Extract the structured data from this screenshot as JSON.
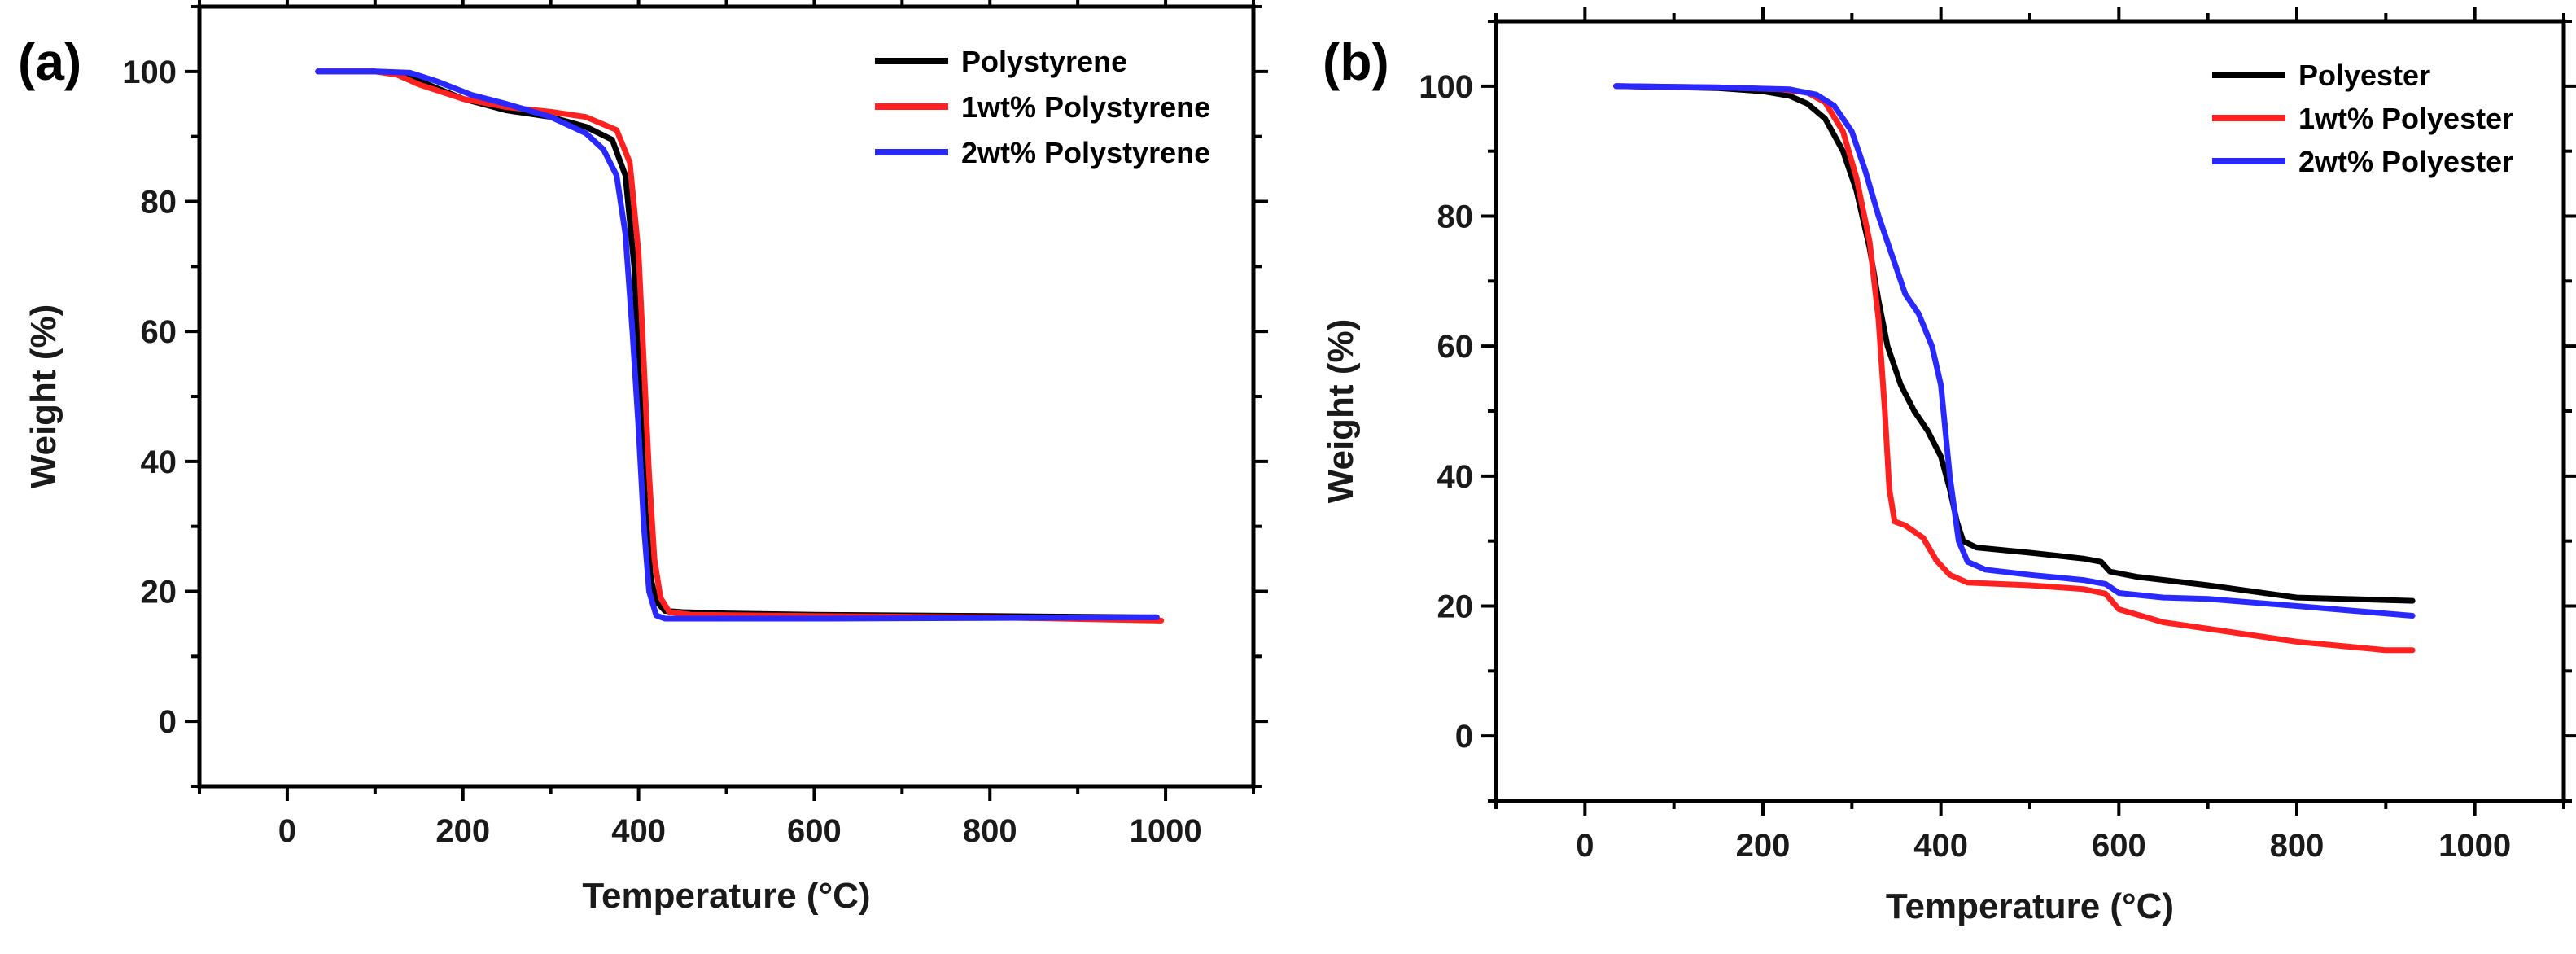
{
  "chart_data": [
    {
      "type": "line",
      "panel_label": "(a)",
      "title": "",
      "xlabel": "Temperature (°C)",
      "ylabel": "Weight (%)",
      "xlim": [
        -100,
        1100
      ],
      "ylim": [
        -10,
        110
      ],
      "x_ticks": [
        0,
        200,
        400,
        600,
        800,
        1000
      ],
      "y_ticks": [
        0,
        20,
        40,
        60,
        80,
        100
      ],
      "x_tick_labels": [
        "0",
        "200",
        "400",
        "600",
        "800",
        "1000"
      ],
      "y_tick_labels": [
        "0",
        "20",
        "40",
        "60",
        "80",
        "100"
      ],
      "legend_position": "top-right",
      "series": [
        {
          "name": "Polystyrene",
          "color": "#000000",
          "points": [
            [
              35,
              100
            ],
            [
              100,
              100
            ],
            [
              130,
              99.6
            ],
            [
              160,
              98
            ],
            [
              200,
              95.8
            ],
            [
              250,
              94
            ],
            [
              300,
              93
            ],
            [
              340,
              91.5
            ],
            [
              370,
              89.5
            ],
            [
              385,
              84
            ],
            [
              395,
              70
            ],
            [
              402,
              50
            ],
            [
              408,
              32
            ],
            [
              414,
              22
            ],
            [
              420,
              18.5
            ],
            [
              430,
              17
            ],
            [
              450,
              16.8
            ],
            [
              500,
              16.6
            ],
            [
              600,
              16.4
            ],
            [
              800,
              16.2
            ],
            [
              990,
              16
            ]
          ]
        },
        {
          "name": "1wt% Polystyrene",
          "color": "#ff2020",
          "points": [
            [
              35,
              100
            ],
            [
              100,
              100
            ],
            [
              125,
              99.5
            ],
            [
              150,
              98
            ],
            [
              200,
              95.8
            ],
            [
              250,
              94.5
            ],
            [
              300,
              93.8
            ],
            [
              340,
              93
            ],
            [
              375,
              91
            ],
            [
              390,
              86
            ],
            [
              400,
              72
            ],
            [
              406,
              55
            ],
            [
              412,
              38
            ],
            [
              418,
              25
            ],
            [
              425,
              19
            ],
            [
              435,
              16.8
            ],
            [
              460,
              16.4
            ],
            [
              600,
              16.2
            ],
            [
              800,
              16
            ],
            [
              995,
              15.5
            ]
          ]
        },
        {
          "name": "2wt% Polystyrene",
          "color": "#2828ff",
          "points": [
            [
              35,
              100
            ],
            [
              100,
              100
            ],
            [
              140,
              99.8
            ],
            [
              170,
              98.5
            ],
            [
              210,
              96.4
            ],
            [
              250,
              95
            ],
            [
              300,
              93
            ],
            [
              340,
              90.5
            ],
            [
              360,
              88
            ],
            [
              375,
              84
            ],
            [
              385,
              75
            ],
            [
              393,
              60
            ],
            [
              400,
              45
            ],
            [
              406,
              30
            ],
            [
              412,
              20
            ],
            [
              420,
              16.3
            ],
            [
              430,
              15.8
            ],
            [
              600,
              15.8
            ],
            [
              800,
              15.9
            ],
            [
              990,
              16
            ]
          ]
        }
      ]
    },
    {
      "type": "line",
      "panel_label": "(b)",
      "title": "",
      "xlabel": "Temperature (°C)",
      "ylabel": "Weight (%)",
      "xlim": [
        -100,
        1100
      ],
      "ylim": [
        -10,
        110
      ],
      "x_ticks": [
        0,
        200,
        400,
        600,
        800,
        1000
      ],
      "y_ticks": [
        0,
        20,
        40,
        60,
        80,
        100
      ],
      "x_tick_labels": [
        "0",
        "200",
        "400",
        "600",
        "800",
        "1000"
      ],
      "y_tick_labels": [
        "0",
        "20",
        "40",
        "60",
        "80",
        "100"
      ],
      "legend_position": "top-right",
      "series": [
        {
          "name": "Polyester",
          "color": "#000000",
          "points": [
            [
              35,
              100
            ],
            [
              150,
              99.7
            ],
            [
              200,
              99.2
            ],
            [
              230,
              98.5
            ],
            [
              250,
              97.3
            ],
            [
              270,
              95
            ],
            [
              290,
              90
            ],
            [
              305,
              84
            ],
            [
              320,
              75
            ],
            [
              330,
              67
            ],
            [
              340,
              60
            ],
            [
              355,
              54
            ],
            [
              370,
              50
            ],
            [
              385,
              47
            ],
            [
              400,
              43
            ],
            [
              410,
              38
            ],
            [
              418,
              33
            ],
            [
              425,
              30
            ],
            [
              440,
              29
            ],
            [
              500,
              28.2
            ],
            [
              560,
              27.3
            ],
            [
              580,
              26.8
            ],
            [
              590,
              25.3
            ],
            [
              620,
              24.5
            ],
            [
              700,
              23.2
            ],
            [
              800,
              21.3
            ],
            [
              930,
              20.8
            ]
          ]
        },
        {
          "name": "1wt% Polyester",
          "color": "#ff2020",
          "points": [
            [
              35,
              100
            ],
            [
              150,
              99.8
            ],
            [
              220,
              99.5
            ],
            [
              250,
              99
            ],
            [
              270,
              97.5
            ],
            [
              290,
              93
            ],
            [
              305,
              86
            ],
            [
              320,
              76
            ],
            [
              330,
              64
            ],
            [
              337,
              50
            ],
            [
              342,
              38
            ],
            [
              348,
              33
            ],
            [
              360,
              32.4
            ],
            [
              380,
              30.5
            ],
            [
              395,
              27
            ],
            [
              410,
              24.8
            ],
            [
              430,
              23.6
            ],
            [
              500,
              23.2
            ],
            [
              560,
              22.6
            ],
            [
              585,
              21.9
            ],
            [
              600,
              19.5
            ],
            [
              650,
              17.5
            ],
            [
              700,
              16.5
            ],
            [
              800,
              14.5
            ],
            [
              900,
              13.2
            ],
            [
              930,
              13.2
            ]
          ]
        },
        {
          "name": "2wt% Polyester",
          "color": "#2828ff",
          "points": [
            [
              35,
              100
            ],
            [
              150,
              99.8
            ],
            [
              230,
              99.5
            ],
            [
              260,
              98.7
            ],
            [
              280,
              97
            ],
            [
              300,
              93
            ],
            [
              315,
              87
            ],
            [
              330,
              80
            ],
            [
              345,
              74
            ],
            [
              360,
              68
            ],
            [
              375,
              65
            ],
            [
              390,
              60
            ],
            [
              400,
              54
            ],
            [
              410,
              40
            ],
            [
              420,
              30
            ],
            [
              430,
              26.8
            ],
            [
              450,
              25.6
            ],
            [
              500,
              24.8
            ],
            [
              560,
              24
            ],
            [
              585,
              23.4
            ],
            [
              600,
              22
            ],
            [
              650,
              21.3
            ],
            [
              700,
              21.1
            ],
            [
              800,
              20
            ],
            [
              930,
              18.5
            ]
          ]
        }
      ]
    }
  ]
}
